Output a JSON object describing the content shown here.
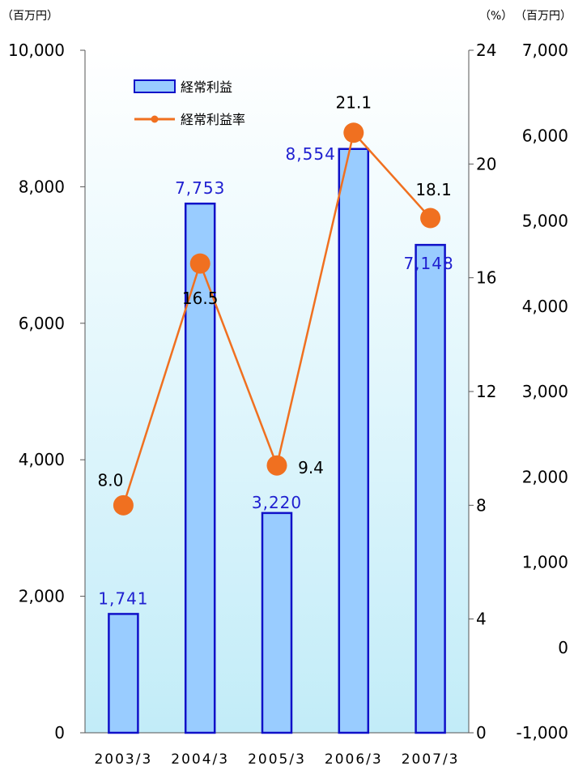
{
  "chart_data": {
    "type": "bar",
    "categories": [
      "2003/3",
      "2004/3",
      "2005/3",
      "2006/3",
      "2007/3"
    ],
    "series": [
      {
        "name": "経常利益",
        "kind": "bar",
        "axis": "left",
        "values": [
          1741,
          7753,
          3220,
          8554,
          7148
        ],
        "labels": [
          "1,741",
          "7,753",
          "3,220",
          "8,554",
          "7,148"
        ]
      },
      {
        "name": "経常利益率",
        "kind": "line",
        "axis": "right",
        "values": [
          8.0,
          16.5,
          9.4,
          21.1,
          18.1
        ],
        "labels": [
          "8.0",
          "16.5",
          "9.4",
          "21.1",
          "18.1"
        ]
      }
    ],
    "left_axis": {
      "unit": "（百万円）",
      "range": [
        0,
        10000
      ],
      "ticks": [
        "0",
        "2,000",
        "4,000",
        "6,000",
        "8,000",
        "10,000"
      ]
    },
    "right_axis": {
      "unit": "（%）",
      "range": [
        0,
        24
      ],
      "ticks": [
        "0",
        "4",
        "8",
        "12",
        "16",
        "20",
        "24"
      ]
    },
    "outer_right_axis": {
      "unit": "（百万円）",
      "range": [
        -1000,
        7000
      ],
      "ticks": [
        "-1,000",
        "0",
        "1,000",
        "2,000",
        "3,000",
        "4,000",
        "5,000",
        "6,000",
        "7,000"
      ]
    },
    "legend": {
      "placement": "top-left"
    },
    "grid": false,
    "colors": {
      "bar_fill": "#99ccff",
      "bar_stroke": "#1010c8",
      "line": "#f07020",
      "marker": "#f07020",
      "plot_bg_top": "#ffffff",
      "plot_bg_bottom": "#c2ecf8",
      "bar_label": "#1f1fd0"
    }
  }
}
